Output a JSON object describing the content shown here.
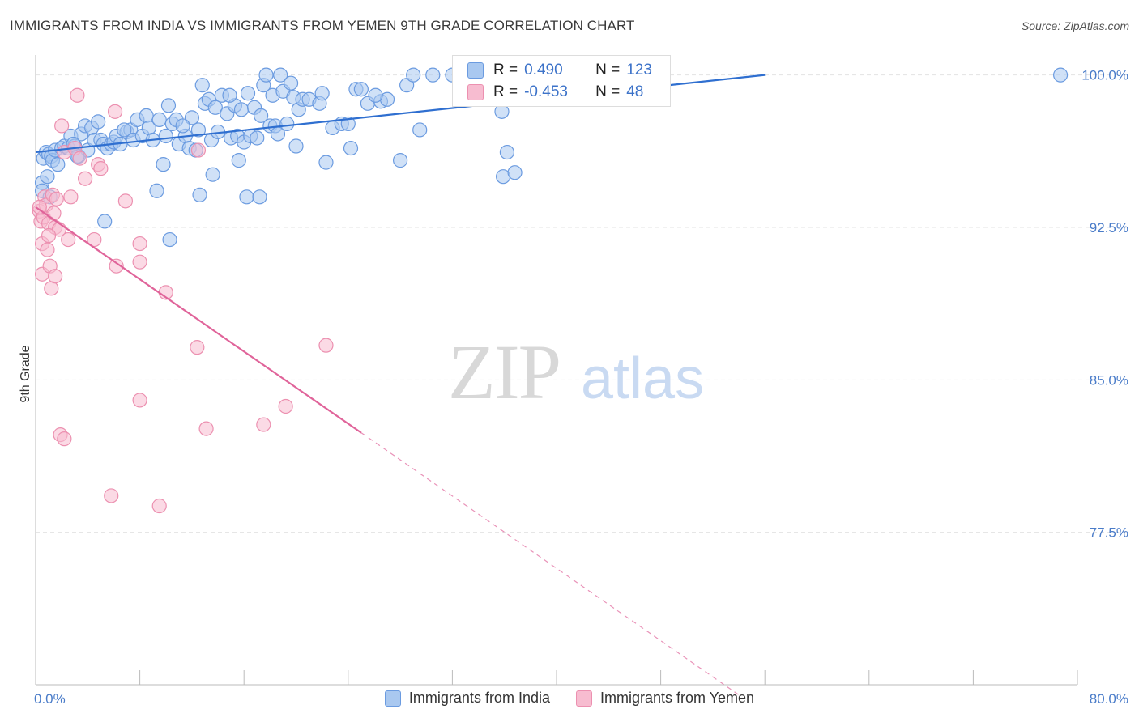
{
  "title": "IMMIGRANTS FROM INDIA VS IMMIGRANTS FROM YEMEN 9TH GRADE CORRELATION CHART",
  "source": "Source: ZipAtlas.com",
  "watermark": {
    "zip": "ZIP",
    "atlas": "atlas"
  },
  "legend_top": [
    {
      "r_label": "R =",
      "r_value": "0.490",
      "n_label": "N =",
      "n_value": "123"
    },
    {
      "r_label": "R =",
      "r_value": "-0.453",
      "n_label": "N =",
      "n_value": "48"
    }
  ],
  "legend_bottom": [
    {
      "label": "Immigrants from India"
    },
    {
      "label": "Immigrants from Yemen"
    }
  ],
  "colors": {
    "india_fill": "#a9c8f0",
    "india_stroke": "#6b9be0",
    "india_line": "#2f6fd0",
    "yemen_fill": "#f7bcd0",
    "yemen_stroke": "#ec90b0",
    "yemen_line": "#e0649a",
    "grid": "#e3e3e3",
    "tick_text": "#4a7cc9"
  },
  "chart_data": {
    "type": "scatter",
    "title": "IMMIGRANTS FROM INDIA VS IMMIGRANTS FROM YEMEN 9TH GRADE CORRELATION CHART",
    "xlabel": "",
    "ylabel": "9th Grade",
    "xlim": [
      0,
      80
    ],
    "ylim": [
      70.0,
      101.3
    ],
    "x_tick_labels": [
      "0.0%",
      "80.0%"
    ],
    "y_ticks": [
      100.0,
      92.5,
      85.0,
      77.5
    ],
    "y_tick_labels": [
      "100.0%",
      "92.5%",
      "85.0%",
      "77.5%"
    ],
    "grid": true,
    "legend_position": "top-center and bottom",
    "series": [
      {
        "name": "Immigrants from India",
        "r": 0.49,
        "n": 123,
        "trend": {
          "x": [
            0,
            56
          ],
          "y": [
            96.2,
            100.0
          ]
        },
        "points": [
          [
            0.5,
            94.7
          ],
          [
            0.5,
            94.3
          ],
          [
            0.6,
            95.9
          ],
          [
            0.8,
            96.2
          ],
          [
            1.0,
            96.1
          ],
          [
            1.2,
            96.0
          ],
          [
            1.3,
            95.8
          ],
          [
            1.5,
            96.3
          ],
          [
            1.7,
            95.6
          ],
          [
            2.0,
            96.4
          ],
          [
            2.2,
            96.5
          ],
          [
            2.5,
            96.4
          ],
          [
            2.7,
            97.0
          ],
          [
            3.0,
            96.5
          ],
          [
            3.3,
            96.0
          ],
          [
            3.5,
            97.1
          ],
          [
            3.8,
            97.5
          ],
          [
            4.0,
            96.3
          ],
          [
            4.3,
            97.4
          ],
          [
            4.5,
            96.8
          ],
          [
            5.0,
            96.8
          ],
          [
            5.2,
            96.6
          ],
          [
            5.5,
            96.4
          ],
          [
            5.8,
            96.6
          ],
          [
            6.0,
            96.7
          ],
          [
            6.2,
            97.0
          ],
          [
            6.5,
            96.6
          ],
          [
            7.0,
            97.2
          ],
          [
            7.3,
            97.3
          ],
          [
            7.5,
            96.8
          ],
          [
            7.8,
            97.8
          ],
          [
            8.2,
            97.0
          ],
          [
            8.5,
            98.0
          ],
          [
            8.7,
            97.4
          ],
          [
            9.0,
            96.8
          ],
          [
            9.5,
            97.8
          ],
          [
            9.8,
            95.6
          ],
          [
            10.0,
            97.0
          ],
          [
            10.2,
            98.5
          ],
          [
            10.5,
            97.6
          ],
          [
            10.8,
            97.8
          ],
          [
            11.0,
            96.6
          ],
          [
            11.5,
            97.0
          ],
          [
            11.8,
            96.4
          ],
          [
            12.0,
            97.9
          ],
          [
            12.3,
            96.3
          ],
          [
            12.5,
            97.3
          ],
          [
            12.8,
            99.5
          ],
          [
            13.0,
            98.6
          ],
          [
            13.3,
            98.8
          ],
          [
            13.5,
            96.8
          ],
          [
            13.8,
            98.4
          ],
          [
            14.0,
            97.2
          ],
          [
            14.3,
            99.0
          ],
          [
            14.7,
            98.1
          ],
          [
            15.0,
            96.9
          ],
          [
            15.3,
            98.5
          ],
          [
            15.5,
            97.0
          ],
          [
            15.8,
            98.3
          ],
          [
            16.0,
            96.7
          ],
          [
            16.3,
            99.1
          ],
          [
            16.5,
            97.0
          ],
          [
            16.8,
            98.4
          ],
          [
            17.0,
            96.9
          ],
          [
            17.3,
            98.0
          ],
          [
            17.5,
            99.5
          ],
          [
            17.7,
            100.0
          ],
          [
            18.0,
            97.5
          ],
          [
            18.2,
            99.0
          ],
          [
            18.4,
            97.5
          ],
          [
            18.6,
            97.1
          ],
          [
            18.8,
            100.0
          ],
          [
            19.0,
            99.2
          ],
          [
            19.3,
            97.6
          ],
          [
            19.8,
            98.9
          ],
          [
            20.2,
            98.3
          ],
          [
            20.5,
            98.8
          ],
          [
            21.0,
            98.8
          ],
          [
            21.8,
            98.6
          ],
          [
            22.0,
            99.1
          ],
          [
            22.8,
            97.4
          ],
          [
            23.5,
            97.6
          ],
          [
            24.0,
            97.6
          ],
          [
            24.6,
            99.3
          ],
          [
            25.0,
            99.3
          ],
          [
            25.5,
            98.6
          ],
          [
            26.5,
            98.7
          ],
          [
            27.0,
            98.8
          ],
          [
            28.5,
            99.5
          ],
          [
            29.0,
            100.0
          ],
          [
            30.5,
            100.0
          ],
          [
            32.0,
            100.0
          ],
          [
            35.0,
            100.0
          ],
          [
            38.0,
            99.8
          ],
          [
            40.0,
            100.0
          ],
          [
            0.9,
            95.0
          ],
          [
            1.1,
            94.0
          ],
          [
            3.2,
            96.0
          ],
          [
            5.3,
            92.8
          ],
          [
            9.3,
            94.3
          ],
          [
            10.3,
            91.9
          ],
          [
            12.6,
            94.1
          ],
          [
            13.6,
            95.1
          ],
          [
            15.6,
            95.8
          ],
          [
            16.2,
            94.0
          ],
          [
            17.2,
            94.0
          ],
          [
            20.0,
            96.5
          ],
          [
            22.3,
            95.7
          ],
          [
            24.2,
            96.4
          ],
          [
            28.0,
            95.8
          ],
          [
            29.5,
            97.3
          ],
          [
            35.8,
            98.2
          ],
          [
            35.9,
            95.0
          ],
          [
            36.2,
            96.2
          ],
          [
            36.8,
            95.2
          ],
          [
            78.7,
            100.0
          ],
          [
            6.8,
            97.3
          ],
          [
            2.9,
            96.6
          ],
          [
            4.8,
            97.7
          ],
          [
            11.3,
            97.5
          ],
          [
            14.9,
            99.0
          ],
          [
            19.6,
            99.6
          ],
          [
            26.1,
            99.0
          ]
        ]
      },
      {
        "name": "Immigrants from Yemen",
        "r": -0.453,
        "n": 48,
        "trend": {
          "x": [
            0,
            25
          ],
          "y": [
            93.5,
            82.4
          ]
        },
        "trend_dashed": {
          "x": [
            25,
            54
          ],
          "y": [
            82.4,
            69.5
          ]
        },
        "points": [
          [
            0.3,
            93.3
          ],
          [
            0.4,
            92.8
          ],
          [
            0.5,
            91.7
          ],
          [
            0.5,
            90.2
          ],
          [
            0.6,
            93.0
          ],
          [
            0.7,
            94.0
          ],
          [
            0.8,
            93.6
          ],
          [
            0.9,
            91.4
          ],
          [
            1.0,
            92.7
          ],
          [
            1.1,
            90.6
          ],
          [
            1.2,
            89.5
          ],
          [
            1.3,
            94.1
          ],
          [
            1.4,
            93.2
          ],
          [
            1.5,
            92.5
          ],
          [
            1.6,
            93.9
          ],
          [
            1.8,
            92.4
          ],
          [
            2.0,
            97.5
          ],
          [
            2.2,
            96.2
          ],
          [
            2.5,
            91.9
          ],
          [
            3.0,
            96.4
          ],
          [
            3.2,
            99.0
          ],
          [
            3.4,
            95.9
          ],
          [
            3.8,
            94.9
          ],
          [
            4.5,
            91.9
          ],
          [
            4.8,
            95.6
          ],
          [
            5.0,
            95.4
          ],
          [
            6.1,
            98.2
          ],
          [
            6.2,
            90.6
          ],
          [
            6.9,
            93.8
          ],
          [
            8.0,
            91.7
          ],
          [
            8.0,
            90.8
          ],
          [
            8.0,
            84.0
          ],
          [
            10.0,
            89.3
          ],
          [
            12.5,
            96.3
          ],
          [
            12.4,
            86.6
          ],
          [
            13.1,
            82.6
          ],
          [
            17.5,
            82.8
          ],
          [
            19.2,
            83.7
          ],
          [
            22.3,
            86.7
          ],
          [
            5.8,
            79.3
          ],
          [
            9.5,
            78.8
          ],
          [
            1.9,
            82.3
          ],
          [
            2.2,
            82.1
          ],
          [
            1.5,
            90.1
          ],
          [
            0.3,
            93.5
          ],
          [
            1.0,
            92.1
          ],
          [
            33.8,
            99.6
          ],
          [
            2.7,
            94.0
          ]
        ]
      }
    ]
  }
}
